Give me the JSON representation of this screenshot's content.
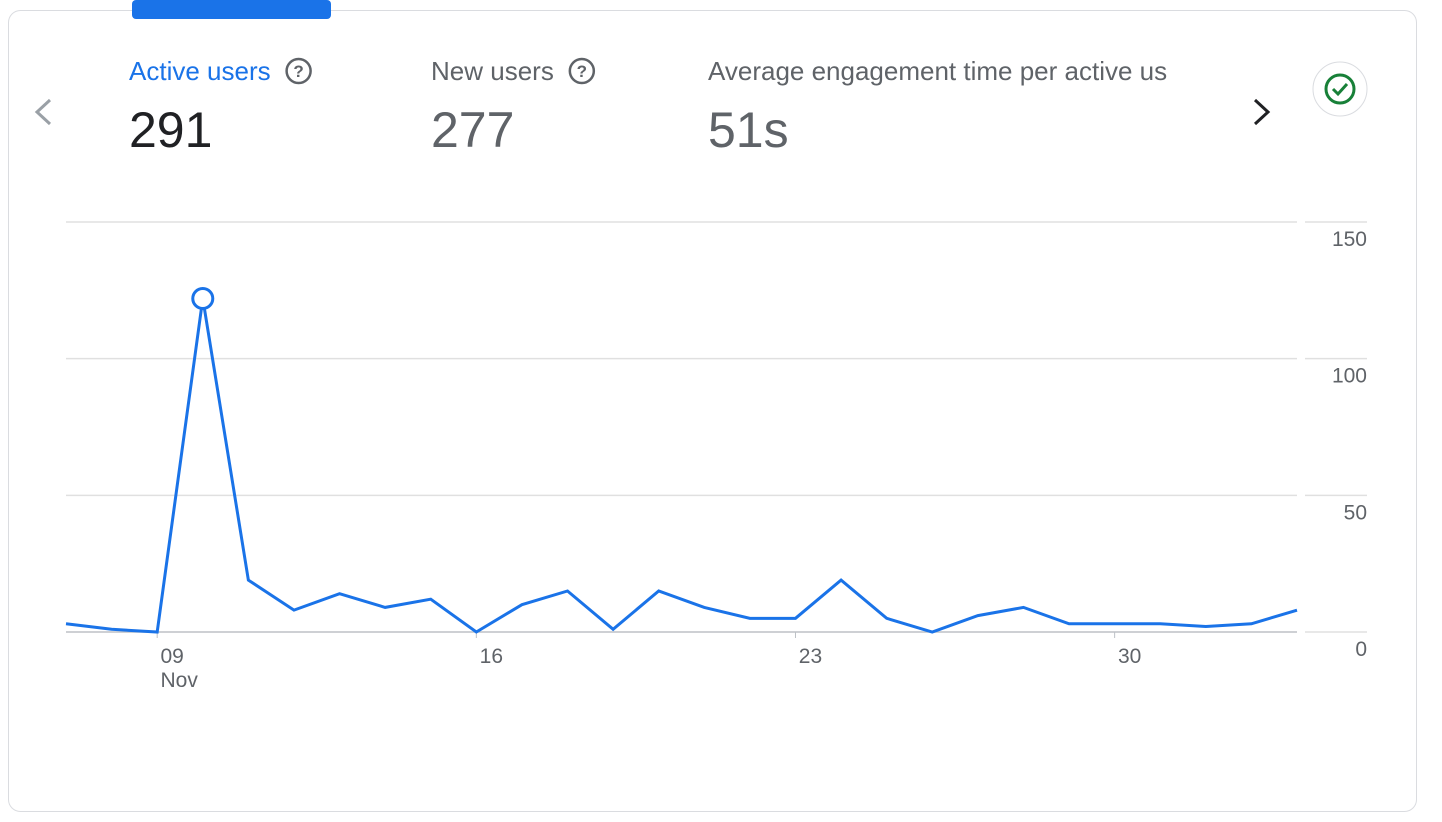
{
  "tabs": [
    {
      "label": "Active users",
      "value": "291"
    },
    {
      "label": "New users",
      "value": "277"
    },
    {
      "label": "Average engagement time per active us",
      "value": "51s"
    }
  ],
  "chart_data": {
    "type": "line",
    "categories": [
      null,
      null,
      "09",
      null,
      null,
      null,
      null,
      null,
      null,
      "16",
      null,
      null,
      null,
      null,
      null,
      null,
      "23",
      null,
      null,
      null,
      null,
      null,
      null,
      "30",
      null,
      null,
      null,
      null
    ],
    "x_month_label": "Nov",
    "values": [
      3,
      1,
      0,
      122,
      19,
      8,
      14,
      9,
      12,
      0,
      10,
      15,
      1,
      15,
      9,
      5,
      5,
      19,
      5,
      0,
      6,
      9,
      3,
      3,
      3,
      2,
      3,
      8
    ],
    "color": "#1a73e8",
    "highlight_index": 3,
    "ylim": [
      0,
      150
    ],
    "yticks": [
      0,
      50,
      100,
      150
    ],
    "grid": true
  }
}
